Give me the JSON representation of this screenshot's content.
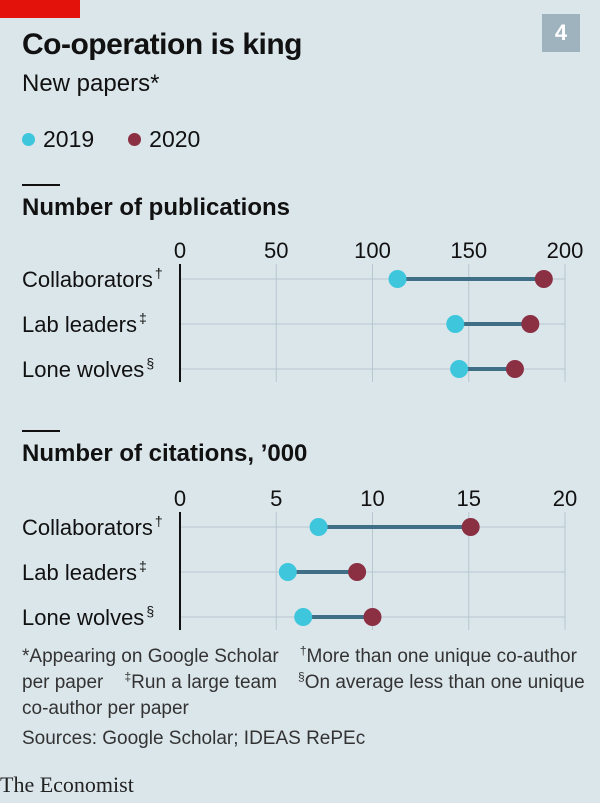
{
  "figure_number": "4",
  "title": "Co-operation is king",
  "subtitle": "New papers*",
  "legend": [
    {
      "label": "2019",
      "color": "#3ec7dc"
    },
    {
      "label": "2020",
      "color": "#8b2f43"
    }
  ],
  "colors": {
    "connector": "#3f6f86",
    "gridline": "#b8c7cf",
    "axis": "#111111"
  },
  "chart_data": [
    {
      "type": "dumbbell",
      "title": "Number of publications",
      "xlim": [
        0,
        200
      ],
      "ticks": [
        0,
        50,
        100,
        150,
        200
      ],
      "tick_labels": [
        "0",
        "50",
        "100",
        "150",
        "200"
      ],
      "categories": [
        {
          "name": "Collaborators",
          "mark": "†"
        },
        {
          "name": "Lab leaders",
          "mark": "‡"
        },
        {
          "name": "Lone wolves",
          "mark": "§"
        }
      ],
      "series": [
        {
          "name": "2019",
          "values": [
            113,
            143,
            145
          ]
        },
        {
          "name": "2020",
          "values": [
            189,
            182,
            174
          ]
        }
      ]
    },
    {
      "type": "dumbbell",
      "title": "Number of citations, ’000",
      "xlim": [
        0,
        20
      ],
      "ticks": [
        0,
        5,
        10,
        15,
        20
      ],
      "tick_labels": [
        "0",
        "5",
        "10",
        "15",
        "20"
      ],
      "categories": [
        {
          "name": "Collaborators",
          "mark": "†"
        },
        {
          "name": "Lab leaders",
          "mark": "‡"
        },
        {
          "name": "Lone wolves",
          "mark": "§"
        }
      ],
      "series": [
        {
          "name": "2019",
          "values": [
            7.2,
            5.6,
            6.4
          ]
        },
        {
          "name": "2020",
          "values": [
            15.1,
            9.2,
            10.0
          ]
        }
      ]
    }
  ],
  "footnotes": {
    "star": "*Appearing on Google Scholar",
    "dagger_mark": "†",
    "dagger": "More than one unique co-author per paper",
    "ddagger_mark": "‡",
    "ddagger": "Run a large team",
    "section_mark": "§",
    "section": "On average less than one unique co-author per paper",
    "sources": "Sources: Google Scholar; IDEAS RePEc"
  },
  "brand": "The Economist"
}
